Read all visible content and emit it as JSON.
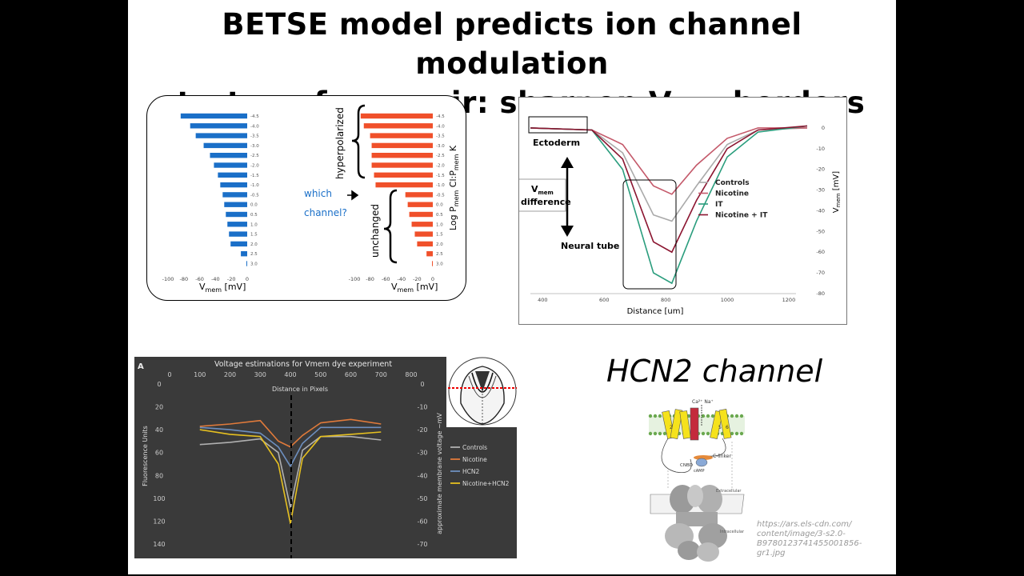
{
  "slide": {
    "title_line1": "BETSE model predicts ion channel modulation",
    "title_line2_pre": "strategy for repair: sharpen V",
    "title_line2_sub": "mem",
    "title_line2_post": " borders"
  },
  "panel_bars": {
    "left_xlabel_main": "V",
    "left_xlabel_sub": "mem",
    "left_xlabel_unit": " [mV]",
    "right_xlabel_main": "V",
    "right_xlabel_sub": "mem",
    "right_xlabel_unit": " [mV]",
    "label_hyperpolarized": "hyperpolarized",
    "label_unchanged": "unchanged",
    "label_which": "which",
    "label_channel": "channel?",
    "right_axis_label": "Log P",
    "right_axis_label_sub": "mem",
    "right_axis_label_mid": " Cl:P",
    "right_axis_label_sub2": "mem",
    "right_axis_label_end": " K",
    "colors": {
      "blue": "#1a6fc8",
      "orange": "#f0502a"
    }
  },
  "panel_profile": {
    "label_ectoderm": "Ectoderm",
    "label_neural_tube": "Neural tube",
    "label_vmem": "V",
    "label_vmem_sub": "mem",
    "label_difference": "difference",
    "xlabel": "Distance [um]",
    "ylabel_main": "V",
    "ylabel_sub": "mem",
    "ylabel_unit": " [mV]"
  },
  "panel_dye": {
    "letter": "A",
    "title": "Voltage estimations for Vmem dye experiment",
    "xlabel": "Distance in Pixels",
    "ylabel_left": "Fluorescence Units",
    "ylabel_right": "approximate membrane voltage ~mV"
  },
  "hcn": {
    "title": "HCN2 channel",
    "label_ca_na": "Ca²⁺ Na⁺",
    "label_clinker": "C-linker",
    "label_cnbd": "CNBD",
    "label_camp": "cAMP",
    "label_extracellular": "Extracellular",
    "label_intracellular": "Intracellular",
    "url_line1": "https://ars.els-cdn.com/",
    "url_line2": "content/image/3-s2.0-",
    "url_line3": "B9780123741455001856-",
    "url_line4": "gr1.jpg"
  },
  "chart_data": [
    {
      "type": "bar",
      "orientation": "horizontal",
      "categories": [
        "-4.5",
        "-4.0",
        "-3.5",
        "-3.0",
        "-2.5",
        "-2.0",
        "-1.5",
        "-1.0",
        "-0.5",
        "0.0",
        "0.5",
        "1.0",
        "1.5",
        "2.0",
        "2.5",
        "3.0"
      ],
      "values": [
        -84,
        -72,
        -65,
        -55,
        -47,
        -42,
        -37,
        -34,
        -31,
        -29,
        -27,
        -25,
        -23,
        -21,
        -8,
        -1
      ],
      "xlim": [
        -100,
        0
      ],
      "xticks": [
        -100,
        -80,
        -60,
        -40,
        -20,
        0
      ],
      "xlabel": "Vmem [mV]",
      "color": "#1a6fc8"
    },
    {
      "type": "bar",
      "orientation": "horizontal",
      "categories": [
        "-4.5",
        "-4.0",
        "-3.5",
        "-3.0",
        "-2.5",
        "-2.0",
        "-1.5",
        "-1.0",
        "-0.5",
        "0.0",
        "0.5",
        "1.0",
        "1.5",
        "2.0",
        "2.5",
        "3.0"
      ],
      "values": [
        -92,
        -88,
        -80,
        -78,
        -78,
        -78,
        -75,
        -73,
        -35,
        -32,
        -30,
        -27,
        -23,
        -20,
        -8,
        -1
      ],
      "xlim": [
        -100,
        0
      ],
      "xticks": [
        -100,
        -80,
        -60,
        -40,
        -20,
        0
      ],
      "xlabel": "Vmem [mV]",
      "ylabel": "Log Pmem Cl:Pmem K",
      "color": "#f0502a"
    },
    {
      "type": "line",
      "xlabel": "Distance [um]",
      "ylabel": "Vmem [mV]",
      "xticks": [
        400,
        600,
        800,
        1000,
        1200
      ],
      "yticks": [
        0,
        -10,
        -20,
        -30,
        -40,
        -50,
        -60,
        -70,
        -80
      ],
      "xlim": [
        360,
        1260
      ],
      "ylim": [
        -80,
        5
      ],
      "series": [
        {
          "name": "Controls",
          "color": "#aaaaaa",
          "x": [
            360,
            560,
            660,
            760,
            820,
            900,
            1000,
            1100,
            1260
          ],
          "y": [
            0,
            -1,
            -12,
            -42,
            -45,
            -28,
            -8,
            -1,
            0
          ]
        },
        {
          "name": "Nicotine",
          "color": "#c4596a",
          "x": [
            360,
            560,
            660,
            760,
            820,
            900,
            1000,
            1100,
            1260
          ],
          "y": [
            0,
            -1,
            -8,
            -28,
            -32,
            -18,
            -5,
            0,
            0
          ]
        },
        {
          "name": "IT",
          "color": "#2a9d7d",
          "x": [
            360,
            560,
            660,
            760,
            820,
            900,
            1000,
            1100,
            1260
          ],
          "y": [
            0,
            -1,
            -20,
            -70,
            -75,
            -45,
            -14,
            -2,
            1
          ]
        },
        {
          "name": "Nicotine + IT",
          "color": "#8b1530",
          "x": [
            360,
            560,
            660,
            760,
            820,
            900,
            1000,
            1100,
            1260
          ],
          "y": [
            0,
            -1,
            -15,
            -55,
            -60,
            -35,
            -10,
            -1,
            1
          ]
        }
      ]
    },
    {
      "type": "line",
      "title": "Voltage estimations for Vmem dye experiment",
      "xlabel": "Distance in Pixels",
      "ylabel": "Fluorescence Units",
      "ylabel_right": "approximate membrane voltage ~mV",
      "xticks": [
        0,
        100,
        200,
        300,
        400,
        500,
        600,
        700,
        800
      ],
      "yticks_left": [
        0,
        20,
        40,
        60,
        80,
        100,
        120,
        140
      ],
      "yticks_right": [
        0,
        -10,
        -20,
        -30,
        -40,
        -50,
        -60,
        -70
      ],
      "xlim": [
        0,
        800
      ],
      "ylim": [
        0,
        140
      ],
      "series": [
        {
          "name": "Controls",
          "color": "#b0b0b0",
          "x": [
            100,
            200,
            300,
            360,
            400,
            440,
            500,
            600,
            700
          ],
          "y": [
            53,
            51,
            48,
            60,
            108,
            58,
            46,
            46,
            49
          ]
        },
        {
          "name": "Nicotine",
          "color": "#e07a3a",
          "x": [
            100,
            200,
            300,
            360,
            400,
            440,
            500,
            600,
            700
          ],
          "y": [
            37,
            35,
            32,
            50,
            55,
            45,
            34,
            31,
            35
          ]
        },
        {
          "name": "HCN2",
          "color": "#6d8fbf",
          "x": [
            100,
            200,
            300,
            360,
            400,
            440,
            500,
            600,
            700
          ],
          "y": [
            38,
            40,
            43,
            55,
            72,
            52,
            38,
            38,
            38
          ]
        },
        {
          "name": "Nicotine+HCN2",
          "color": "#e6c020",
          "x": [
            100,
            200,
            300,
            360,
            400,
            440,
            500,
            600,
            700
          ],
          "y": [
            40,
            44,
            46,
            70,
            122,
            65,
            46,
            44,
            42
          ]
        }
      ]
    }
  ]
}
